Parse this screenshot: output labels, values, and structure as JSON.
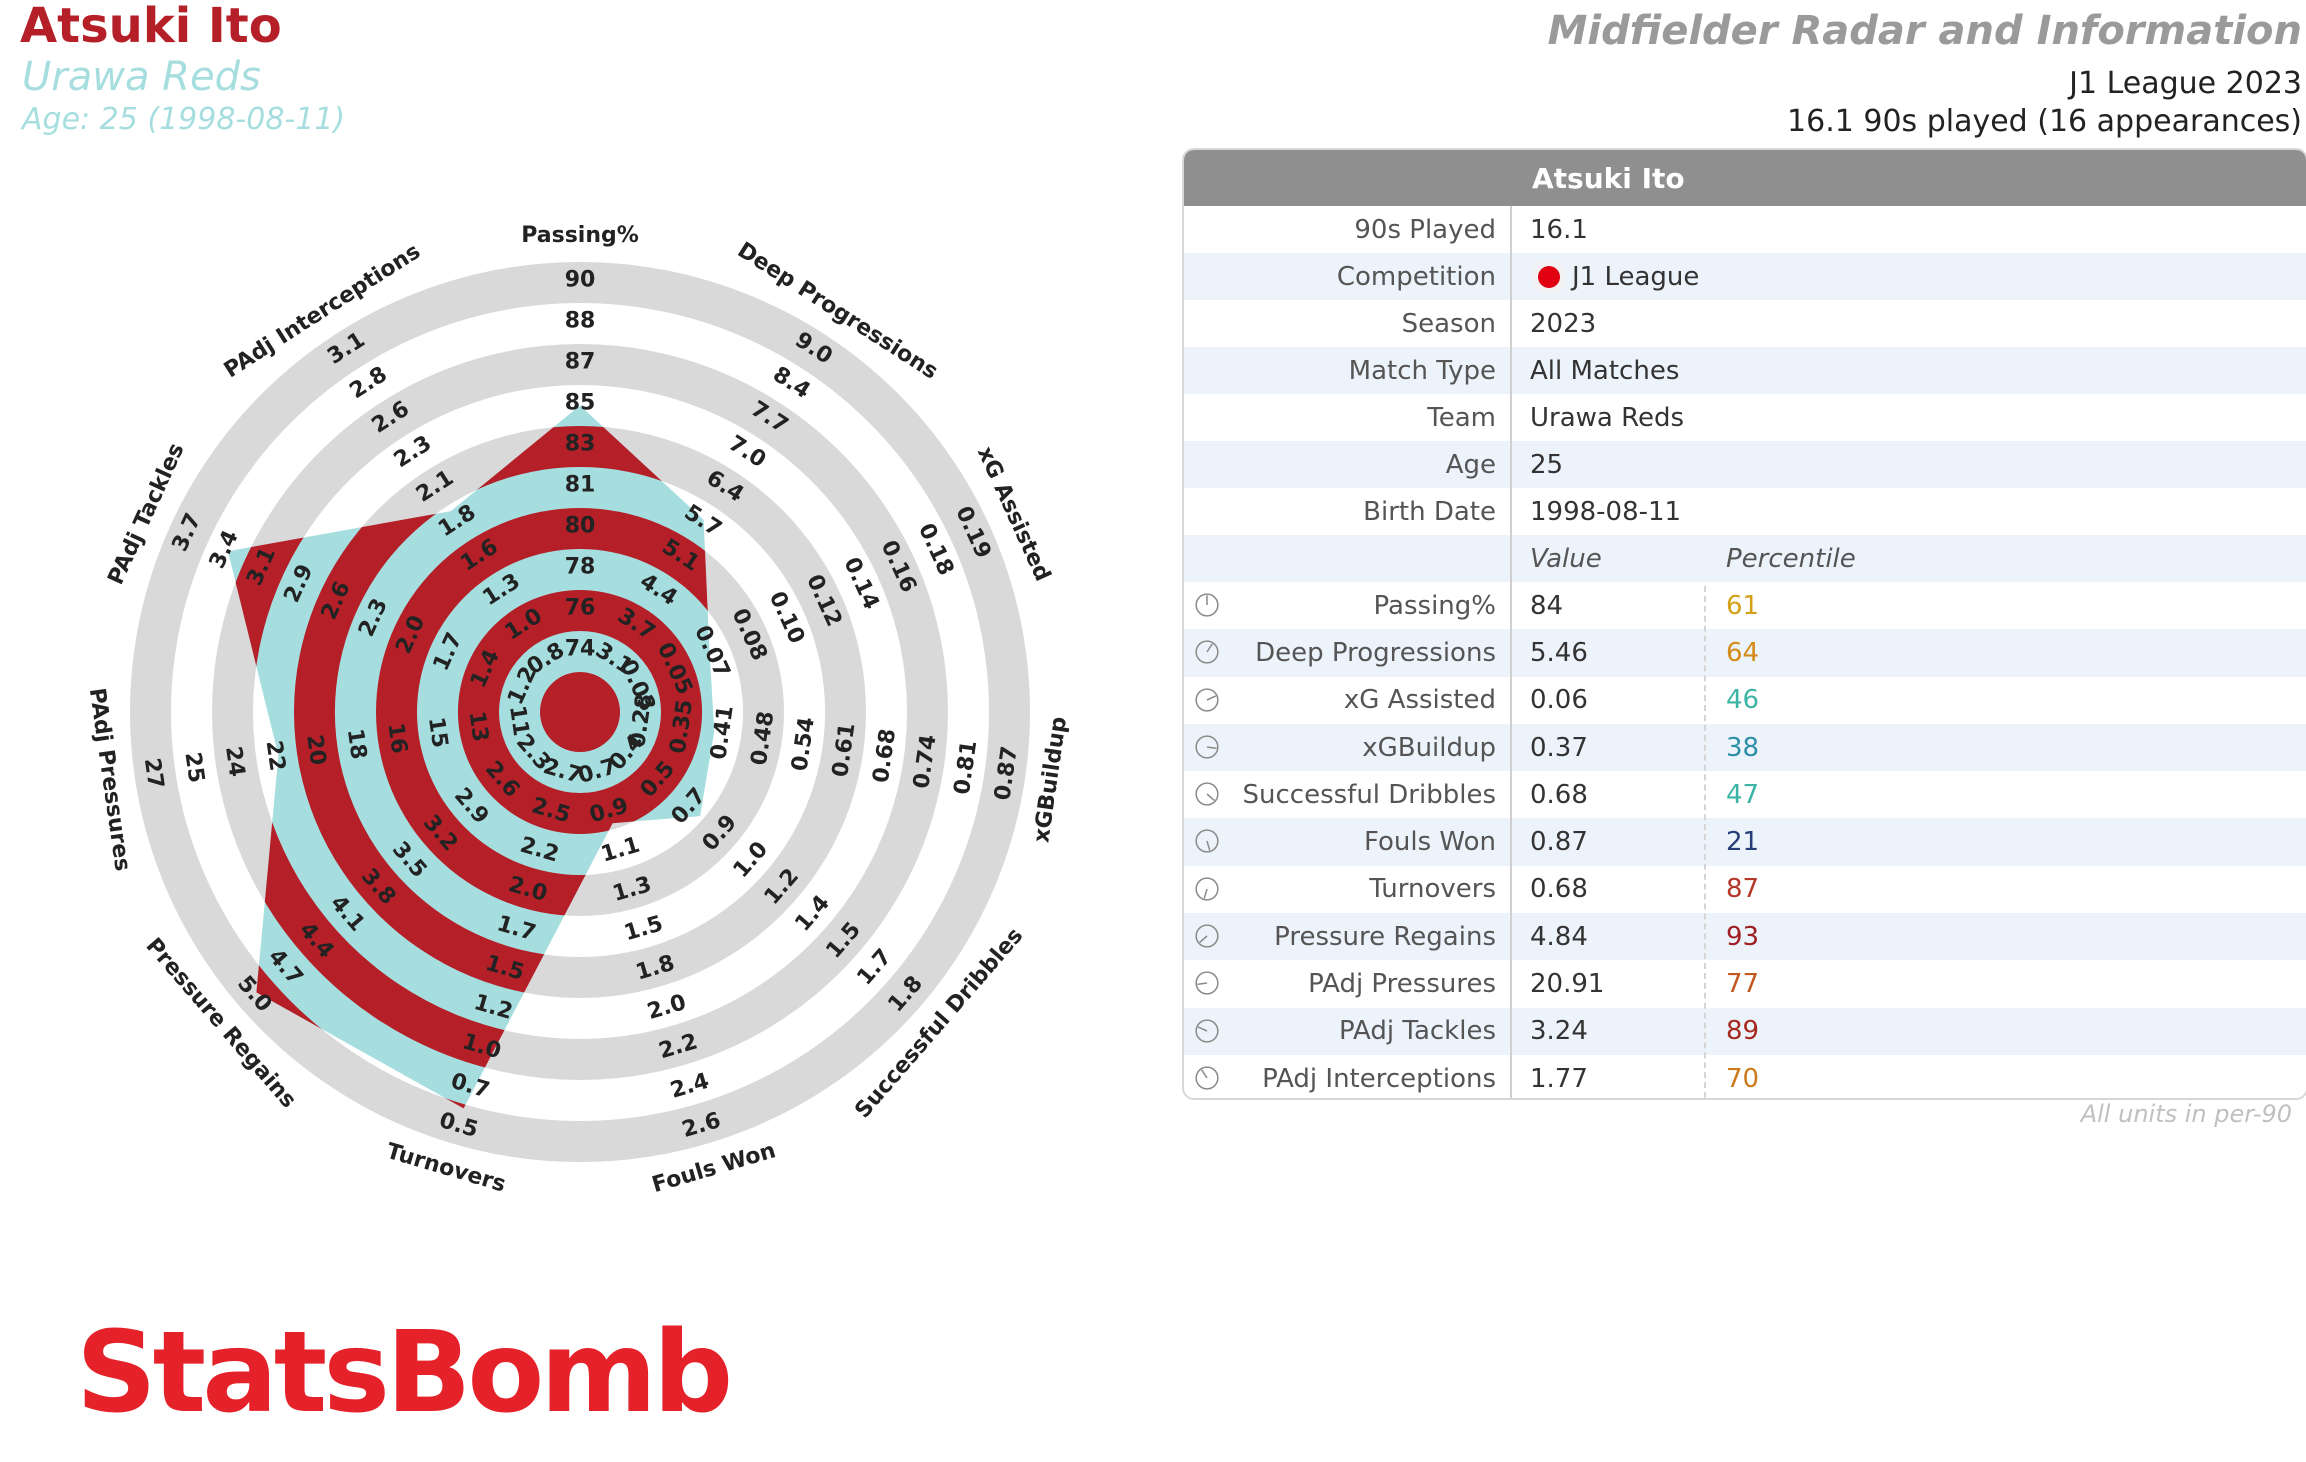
{
  "header": {
    "player_name": "Atsuki Ito",
    "team": "Urawa Reds",
    "age_line": "Age: 25 (1998-08-11)",
    "report_title": "Midfielder Radar and Information",
    "league_season": "J1 League 2023",
    "played_line": "16.1 90s played (16 appearances)"
  },
  "colors": {
    "player_red": "#b51f28",
    "team_teal": "#a6dedf",
    "ring_gray": "#d9d9d9",
    "header_gray": "#8f8f8f",
    "logo_red": "#e5222a"
  },
  "chart_data": {
    "type": "radar",
    "grid": true,
    "metrics": [
      {
        "name": "Passing%",
        "ticks": [
          "74",
          "76",
          "78",
          "80",
          "81",
          "83",
          "85",
          "87",
          "88",
          "90"
        ],
        "value": 84,
        "percentile": 61
      },
      {
        "name": "Deep Progressions",
        "ticks": [
          "3.1",
          "3.7",
          "4.4",
          "5.1",
          "5.7",
          "6.4",
          "7.0",
          "7.7",
          "8.4",
          "9.0"
        ],
        "value": 5.46,
        "percentile": 64
      },
      {
        "name": "xG Assisted",
        "ticks": [
          "0.03",
          "0.05",
          "0.07",
          "0.08",
          "0.10",
          "0.12",
          "0.14",
          "0.16",
          "0.18",
          "0.19"
        ],
        "value": 0.06,
        "percentile": 46
      },
      {
        "name": "xGBuildup",
        "ticks": [
          "0.28",
          "0.35",
          "0.41",
          "0.48",
          "0.54",
          "0.61",
          "0.68",
          "0.74",
          "0.81",
          "0.87"
        ],
        "value": 0.37,
        "percentile": 38
      },
      {
        "name": "Successful Dribbles",
        "ticks": [
          "0.4",
          "0.5",
          "0.7",
          "0.9",
          "1.0",
          "1.2",
          "1.4",
          "1.5",
          "1.7",
          "1.8"
        ],
        "value": 0.68,
        "percentile": 47
      },
      {
        "name": "Fouls Won",
        "ticks": [
          "0.7",
          "0.9",
          "1.1",
          "1.3",
          "1.5",
          "1.8",
          "2.0",
          "2.2",
          "2.4",
          "2.6"
        ],
        "value": 0.87,
        "percentile": 21
      },
      {
        "name": "Turnovers",
        "ticks": [
          "2.7",
          "2.5",
          "2.2",
          "2.0",
          "1.7",
          "1.5",
          "1.2",
          "1.0",
          "0.7",
          "0.5"
        ],
        "value": 0.68,
        "percentile": 87
      },
      {
        "name": "Pressure Regains",
        "ticks": [
          "2.3",
          "2.6",
          "2.9",
          "3.2",
          "3.5",
          "3.8",
          "4.1",
          "4.4",
          "4.7",
          "5.0"
        ],
        "value": 4.84,
        "percentile": 93
      },
      {
        "name": "PAdj Pressures",
        "ticks": [
          "11",
          "13",
          "15",
          "16",
          "18",
          "20",
          "22",
          "24",
          "25",
          "27"
        ],
        "value": 20.91,
        "percentile": 77
      },
      {
        "name": "PAdj Tackles",
        "ticks": [
          "1.2",
          "1.4",
          "1.7",
          "2.0",
          "2.3",
          "2.6",
          "2.9",
          "3.1",
          "3.4",
          "3.7"
        ],
        "value": 3.24,
        "percentile": 89
      },
      {
        "name": "PAdj Interceptions",
        "ticks": [
          "0.8",
          "1.0",
          "1.3",
          "1.6",
          "1.8",
          "2.1",
          "2.3",
          "2.6",
          "2.8",
          "3.1"
        ],
        "value": 1.77,
        "percentile": 70
      }
    ]
  },
  "table": {
    "header": "Atsuki Ito",
    "info": [
      {
        "label": "90s Played",
        "value": "16.1"
      },
      {
        "label": "Competition",
        "value": "J1 League"
      },
      {
        "label": "Season",
        "value": "2023"
      },
      {
        "label": "Match Type",
        "value": "All Matches"
      },
      {
        "label": "Team",
        "value": "Urawa Reds"
      },
      {
        "label": "Age",
        "value": "25"
      },
      {
        "label": "Birth Date",
        "value": "1998-08-11"
      }
    ],
    "col_value": "Value",
    "col_percentile": "Percentile",
    "metrics": [
      {
        "label": "Passing%",
        "value": "84",
        "percentile": "61",
        "color": "#d4a017"
      },
      {
        "label": "Deep Progressions",
        "value": "5.46",
        "percentile": "64",
        "color": "#d48a17"
      },
      {
        "label": "xG Assisted",
        "value": "0.06",
        "percentile": "46",
        "color": "#3cb4a5"
      },
      {
        "label": "xGBuildup",
        "value": "0.37",
        "percentile": "38",
        "color": "#2e8fa8"
      },
      {
        "label": "Successful Dribbles",
        "value": "0.68",
        "percentile": "47",
        "color": "#3cb4a5"
      },
      {
        "label": "Fouls Won",
        "value": "0.87",
        "percentile": "21",
        "color": "#263e78"
      },
      {
        "label": "Turnovers",
        "value": "0.68",
        "percentile": "87",
        "color": "#b5362a"
      },
      {
        "label": "Pressure Regains",
        "value": "4.84",
        "percentile": "93",
        "color": "#9e1e22"
      },
      {
        "label": "PAdj Pressures",
        "value": "20.91",
        "percentile": "77",
        "color": "#c2571f"
      },
      {
        "label": "PAdj Tackles",
        "value": "3.24",
        "percentile": "89",
        "color": "#a5291f"
      },
      {
        "label": "PAdj Interceptions",
        "value": "1.77",
        "percentile": "70",
        "color": "#cc7a1a"
      }
    ],
    "footnote": "All units in per-90"
  },
  "logo_text": "StatsBomb"
}
